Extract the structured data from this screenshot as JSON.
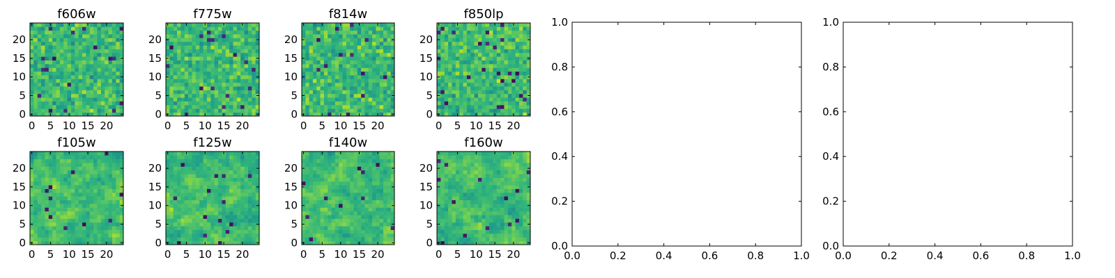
{
  "chart_data": [
    {
      "type": "heatmap",
      "title": "f606w",
      "xlim": [
        -0.5,
        24.5
      ],
      "ylim": [
        -0.5,
        24.5
      ],
      "xticks": [
        0,
        5,
        10,
        15,
        20
      ],
      "yticks": [
        0,
        5,
        10,
        15,
        20
      ],
      "grid_size": [
        25,
        25
      ],
      "colormap": "viridis",
      "style": "pixel-noise"
    },
    {
      "type": "heatmap",
      "title": "f775w",
      "xlim": [
        -0.5,
        24.5
      ],
      "ylim": [
        -0.5,
        24.5
      ],
      "xticks": [
        0,
        5,
        10,
        15,
        20
      ],
      "yticks": [
        0,
        5,
        10,
        15,
        20
      ],
      "grid_size": [
        25,
        25
      ],
      "colormap": "viridis",
      "style": "pixel-noise"
    },
    {
      "type": "heatmap",
      "title": "f814w",
      "xlim": [
        -0.5,
        24.5
      ],
      "ylim": [
        -0.5,
        24.5
      ],
      "xticks": [
        0,
        5,
        10,
        15,
        20
      ],
      "yticks": [
        0,
        5,
        10,
        15,
        20
      ],
      "grid_size": [
        25,
        25
      ],
      "colormap": "viridis",
      "style": "pixel-noise"
    },
    {
      "type": "heatmap",
      "title": "f850lp",
      "xlim": [
        -0.5,
        24.5
      ],
      "ylim": [
        -0.5,
        24.5
      ],
      "xticks": [
        0,
        5,
        10,
        15,
        20
      ],
      "yticks": [
        0,
        5,
        10,
        15,
        20
      ],
      "grid_size": [
        25,
        25
      ],
      "colormap": "viridis",
      "style": "pixel-noise"
    },
    {
      "type": "heatmap",
      "title": "f105w",
      "xlim": [
        -0.5,
        24.5
      ],
      "ylim": [
        -0.5,
        24.5
      ],
      "xticks": [
        0,
        5,
        10,
        15,
        20
      ],
      "yticks": [
        0,
        5,
        10,
        15,
        20
      ],
      "grid_size": [
        25,
        25
      ],
      "colormap": "viridis",
      "style": "blocky-noise"
    },
    {
      "type": "heatmap",
      "title": "f125w",
      "xlim": [
        -0.5,
        24.5
      ],
      "ylim": [
        -0.5,
        24.5
      ],
      "xticks": [
        0,
        5,
        10,
        15,
        20
      ],
      "yticks": [
        0,
        5,
        10,
        15,
        20
      ],
      "grid_size": [
        25,
        25
      ],
      "colormap": "viridis",
      "style": "blocky-noise"
    },
    {
      "type": "heatmap",
      "title": "f140w",
      "xlim": [
        -0.5,
        24.5
      ],
      "ylim": [
        -0.5,
        24.5
      ],
      "xticks": [
        0,
        5,
        10,
        15,
        20
      ],
      "yticks": [
        0,
        5,
        10,
        15,
        20
      ],
      "grid_size": [
        25,
        25
      ],
      "colormap": "viridis",
      "style": "blocky-noise"
    },
    {
      "type": "heatmap",
      "title": "f160w",
      "xlim": [
        -0.5,
        24.5
      ],
      "ylim": [
        -0.5,
        24.5
      ],
      "xticks": [
        0,
        5,
        10,
        15,
        20
      ],
      "yticks": [
        0,
        5,
        10,
        15,
        20
      ],
      "grid_size": [
        25,
        25
      ],
      "colormap": "viridis",
      "style": "blocky-noise"
    },
    {
      "type": "line",
      "title": "",
      "xlim": [
        0.0,
        1.0
      ],
      "ylim": [
        0.0,
        1.0
      ],
      "xticks": [
        "0.0",
        "0.2",
        "0.4",
        "0.6",
        "0.8",
        "1.0"
      ],
      "yticks": [
        "0.0",
        "0.2",
        "0.4",
        "0.6",
        "0.8",
        "1.0"
      ],
      "series": []
    },
    {
      "type": "line",
      "title": "",
      "xlim": [
        0.0,
        1.0
      ],
      "ylim": [
        0.0,
        1.0
      ],
      "xticks": [
        "0.0",
        "0.2",
        "0.4",
        "0.6",
        "0.8",
        "1.0"
      ],
      "yticks": [
        "0.0",
        "0.2",
        "0.4",
        "0.6",
        "0.8",
        "1.0"
      ],
      "series": []
    }
  ]
}
